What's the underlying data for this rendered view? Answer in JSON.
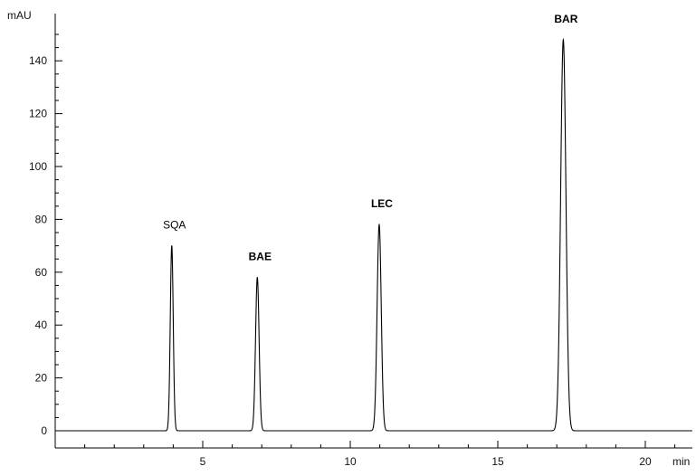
{
  "chart_data": {
    "type": "line",
    "title": "",
    "xlabel": "min",
    "ylabel": "mAU",
    "xlim": [
      0,
      22
    ],
    "ylim": [
      -5,
      155
    ],
    "x_ticks": [
      5,
      10,
      15,
      20
    ],
    "y_ticks": [
      0,
      20,
      40,
      60,
      80,
      100,
      120,
      140
    ],
    "grid": false,
    "baseline": 0,
    "peaks": [
      {
        "label": "SQA",
        "time": 3.95,
        "height": 70,
        "width": 0.05,
        "bold": false
      },
      {
        "label": "BAE",
        "time": 6.85,
        "height": 58,
        "width": 0.06,
        "bold": true
      },
      {
        "label": "LEC",
        "time": 10.98,
        "height": 78,
        "width": 0.07,
        "bold": true
      },
      {
        "label": "BAR",
        "time": 17.22,
        "height": 148,
        "width": 0.09,
        "bold": true
      }
    ]
  }
}
